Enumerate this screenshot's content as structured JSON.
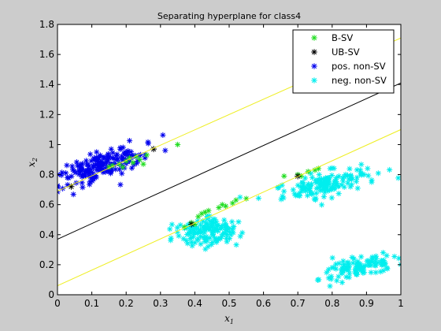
{
  "chart_data": {
    "type": "scatter",
    "title": "Separating hyperplane for class4",
    "xlabel": "x",
    "xlabel_sub": "1",
    "ylabel": "x",
    "ylabel_sub": "2",
    "xlim": [
      0,
      1
    ],
    "ylim": [
      0,
      1.8
    ],
    "xticks": [
      "0",
      "0.1",
      "0.2",
      "0.3",
      "0.4",
      "0.5",
      "0.6",
      "0.7",
      "0.8",
      "0.9",
      "1"
    ],
    "yticks": [
      "0",
      "0.2",
      "0.4",
      "0.6",
      "0.8",
      "1",
      "1.2",
      "1.4",
      "1.6",
      "1.8"
    ],
    "grid": false,
    "legend_position": "top-right",
    "colors": {
      "background": "#cccccc",
      "axes_face": "#ffffff",
      "b_sv": "#22dd22",
      "ub_sv": "#000000",
      "pos_non_sv": "#0000ee",
      "neg_non_sv": "#00eeee",
      "margin": "#eeee22",
      "hyperplane": "#000000"
    },
    "lines": [
      {
        "role": "margin-upper",
        "x": [
          0,
          1
        ],
        "y": [
          0.69,
          1.71
        ]
      },
      {
        "role": "hyperplane",
        "x": [
          0,
          1
        ],
        "y": [
          0.37,
          1.41
        ]
      },
      {
        "role": "margin-lower",
        "x": [
          0,
          1
        ],
        "y": [
          0.06,
          1.1
        ]
      }
    ],
    "series": [
      {
        "name": "B-SV",
        "marker": "*",
        "color": "#22dd22",
        "points": [
          [
            0.16,
            0.86
          ],
          [
            0.18,
            0.87
          ],
          [
            0.2,
            0.89
          ],
          [
            0.22,
            0.88
          ],
          [
            0.24,
            0.9
          ],
          [
            0.23,
            0.92
          ],
          [
            0.25,
            0.87
          ],
          [
            0.15,
            0.85
          ],
          [
            0.35,
            1.0
          ],
          [
            0.19,
            0.85
          ],
          [
            0.26,
            0.93
          ],
          [
            0.21,
            0.91
          ],
          [
            0.37,
            0.45
          ],
          [
            0.39,
            0.48
          ],
          [
            0.41,
            0.52
          ],
          [
            0.43,
            0.55
          ],
          [
            0.44,
            0.56
          ],
          [
            0.47,
            0.58
          ],
          [
            0.48,
            0.6
          ],
          [
            0.49,
            0.59
          ],
          [
            0.51,
            0.61
          ],
          [
            0.52,
            0.63
          ],
          [
            0.55,
            0.64
          ],
          [
            0.42,
            0.54
          ],
          [
            0.4,
            0.47
          ],
          [
            0.66,
            0.79
          ],
          [
            0.7,
            0.8
          ],
          [
            0.73,
            0.82
          ],
          [
            0.75,
            0.83
          ],
          [
            0.76,
            0.84
          ],
          [
            0.71,
            0.79
          ]
        ]
      },
      {
        "name": "UB-SV",
        "marker": "*",
        "color": "#000000",
        "points": [
          [
            0.39,
            0.47
          ],
          [
            0.7,
            0.79
          ],
          [
            0.28,
            0.97
          ],
          [
            0.04,
            0.72
          ]
        ]
      },
      {
        "name": "pos. non-SV",
        "marker": "*",
        "color": "#0000ee",
        "cluster": {
          "center": [
            0.13,
            0.86
          ],
          "spread_major": 0.085,
          "spread_minor": 0.032,
          "slope": 0.95,
          "n": 190
        }
      },
      {
        "name": "neg. non-SV",
        "marker": "*",
        "color": "#00eeee",
        "clusters": [
          {
            "center": [
              0.44,
              0.42
            ],
            "spread_major": 0.05,
            "spread_minor": 0.045,
            "slope": 1.2,
            "n": 140
          },
          {
            "center": [
              0.78,
              0.74
            ],
            "spread_major": 0.075,
            "spread_minor": 0.035,
            "slope": 0.55,
            "n": 150
          },
          {
            "center": [
              0.88,
              0.18
            ],
            "spread_major": 0.07,
            "spread_minor": 0.03,
            "slope": 0.65,
            "n": 110
          }
        ]
      }
    ]
  }
}
